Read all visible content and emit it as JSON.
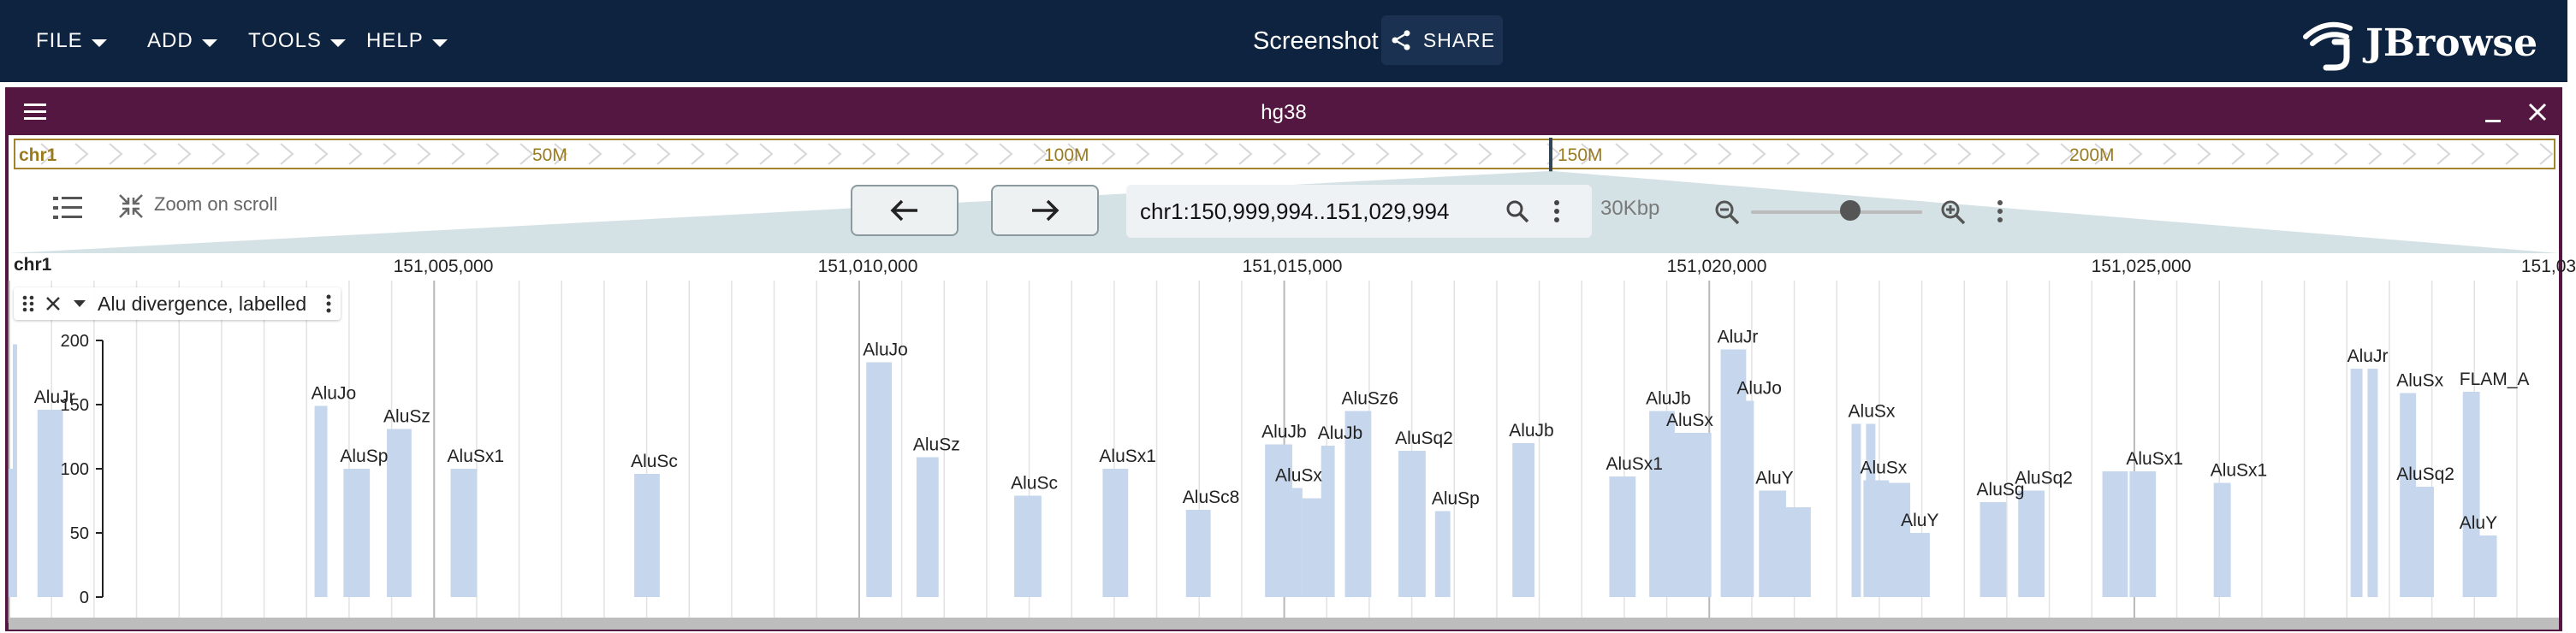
{
  "menus": [
    {
      "label": "FILE",
      "name": "menu-file"
    },
    {
      "label": "ADD",
      "name": "menu-add"
    },
    {
      "label": "TOOLS",
      "name": "menu-tools"
    },
    {
      "label": "HELP",
      "name": "menu-help"
    }
  ],
  "session": {
    "name": "Screenshot",
    "share_label": "SHARE"
  },
  "logo": {
    "text": "JBrowse"
  },
  "view": {
    "title": "hg38",
    "overview": {
      "chrom": "chr1",
      "labels": [
        "50M",
        "100M",
        "150M",
        "200M"
      ]
    },
    "nav": {
      "zoom_on_scroll": "Zoom on scroll",
      "location": "chr1:150,999,994..151,029,994",
      "bp_per_view": "30Kbp",
      "zoom_level": 0.58
    },
    "ruler": {
      "chrom": "chr1",
      "ticks": [
        "151,005,000",
        "151,010,000",
        "151,015,000",
        "151,020,000",
        "151,025,000",
        "151,03"
      ]
    },
    "track": {
      "name": "Alu divergence, labelled",
      "y_ticks": [
        "200",
        "150",
        "100",
        "50",
        "0"
      ]
    }
  },
  "colors": {
    "appbar": "#0d233f",
    "view_header": "#541741",
    "bar": "#c6d6ec",
    "overview_border": "#a3842d"
  },
  "chart_data": {
    "type": "bar",
    "title": "",
    "xlabel": "",
    "ylabel": "",
    "ylim": [
      0,
      200
    ],
    "x_unit": "bp",
    "features": [
      {
        "start": 150999994,
        "end": 151000044,
        "value": 100,
        "label": ""
      },
      {
        "start": 151000044,
        "end": 151000094,
        "value": 197,
        "label": ""
      },
      {
        "start": 151000334,
        "end": 151000634,
        "value": 146,
        "label": "AluJr"
      },
      {
        "start": 151003594,
        "end": 151003744,
        "value": 149,
        "label": "AluJo"
      },
      {
        "start": 151003934,
        "end": 151004244,
        "value": 100,
        "label": "AluSp"
      },
      {
        "start": 151004444,
        "end": 151004734,
        "value": 131,
        "label": "AluSz"
      },
      {
        "start": 151005194,
        "end": 151005504,
        "value": 100,
        "label": "AluSx1"
      },
      {
        "start": 151007354,
        "end": 151007654,
        "value": 96,
        "label": "AluSc"
      },
      {
        "start": 151010084,
        "end": 151010384,
        "value": 183,
        "label": "AluJo"
      },
      {
        "start": 151010674,
        "end": 151010934,
        "value": 109,
        "label": "AluSz"
      },
      {
        "start": 151011824,
        "end": 151012144,
        "value": 79,
        "label": "AluSc"
      },
      {
        "start": 151012864,
        "end": 151013164,
        "value": 100,
        "label": "AluSx1"
      },
      {
        "start": 151013844,
        "end": 151014134,
        "value": 68,
        "label": "AluSc8"
      },
      {
        "start": 151014774,
        "end": 151015094,
        "value": 119,
        "label": "AluJb"
      },
      {
        "start": 151014934,
        "end": 151015214,
        "value": 85,
        "label": "AluSx"
      },
      {
        "start": 151015214,
        "end": 151015524,
        "value": 77,
        "label": ""
      },
      {
        "start": 151015434,
        "end": 151015594,
        "value": 118,
        "label": "AluJb"
      },
      {
        "start": 151015714,
        "end": 151016024,
        "value": 145,
        "label": "AluSz6"
      },
      {
        "start": 151016344,
        "end": 151016664,
        "value": 114,
        "label": "AluSq2"
      },
      {
        "start": 151016774,
        "end": 151016954,
        "value": 67,
        "label": "AluSp"
      },
      {
        "start": 151017684,
        "end": 151017944,
        "value": 120,
        "label": "AluJb"
      },
      {
        "start": 151018824,
        "end": 151019134,
        "value": 94,
        "label": "AluSx1"
      },
      {
        "start": 151019294,
        "end": 151019594,
        "value": 145,
        "label": "AluJb"
      },
      {
        "start": 151019534,
        "end": 151020024,
        "value": 128,
        "label": "AluSx"
      },
      {
        "start": 151020134,
        "end": 151020434,
        "value": 193,
        "label": "AluJr"
      },
      {
        "start": 151020364,
        "end": 151020524,
        "value": 153,
        "label": "AluJo"
      },
      {
        "start": 151020584,
        "end": 151020904,
        "value": 83,
        "label": "AluY"
      },
      {
        "start": 151020874,
        "end": 151021194,
        "value": 70,
        "label": ""
      },
      {
        "start": 151021674,
        "end": 151021784,
        "value": 135,
        "label": "AluSx"
      },
      {
        "start": 151021844,
        "end": 151021954,
        "value": 135,
        "label": ""
      },
      {
        "start": 151021814,
        "end": 151022114,
        "value": 91,
        "label": "AluSx"
      },
      {
        "start": 151022064,
        "end": 151022364,
        "value": 89,
        "label": ""
      },
      {
        "start": 151022294,
        "end": 151022594,
        "value": 50,
        "label": "AluY"
      },
      {
        "start": 151023184,
        "end": 151023494,
        "value": 74,
        "label": "AluSg"
      },
      {
        "start": 151023634,
        "end": 151023944,
        "value": 83,
        "label": "AluSq2"
      },
      {
        "start": 151024624,
        "end": 151024924,
        "value": 98,
        "label": ""
      },
      {
        "start": 151024944,
        "end": 151025254,
        "value": 98,
        "label": "AluSx1"
      },
      {
        "start": 151025194,
        "end": 151025244,
        "value": 94,
        "label": ""
      },
      {
        "start": 151025934,
        "end": 151026134,
        "value": 89,
        "label": "AluSx1"
      },
      {
        "start": 151027544,
        "end": 151027684,
        "value": 178,
        "label": "AluJr"
      },
      {
        "start": 151027744,
        "end": 151027864,
        "value": 178,
        "label": ""
      },
      {
        "start": 151028124,
        "end": 151028314,
        "value": 159,
        "label": "AluSx"
      },
      {
        "start": 151028124,
        "end": 151028524,
        "value": 86,
        "label": "AluSq2"
      },
      {
        "start": 151028864,
        "end": 151029064,
        "value": 160,
        "label": "FLAM_A"
      },
      {
        "start": 151028864,
        "end": 151029264,
        "value": 48,
        "label": "AluY"
      }
    ],
    "unlabeled_features": []
  }
}
